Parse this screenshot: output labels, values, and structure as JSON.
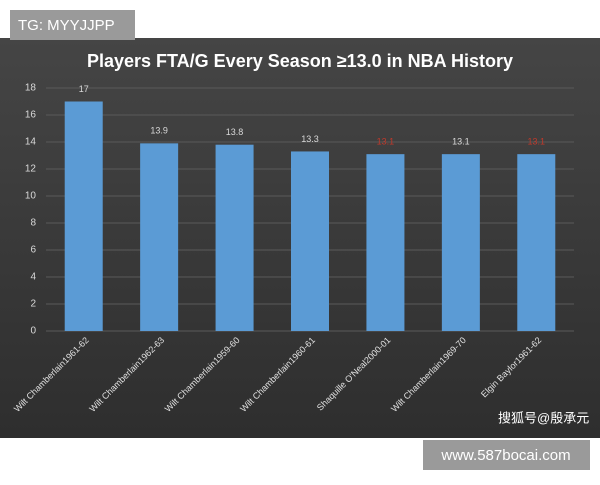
{
  "overlay_top": "TG: MYYJJPP",
  "overlay_bottom": "www.587bocai.com",
  "source": "搜狐号@殷承元",
  "chart_data": {
    "type": "bar",
    "title": "Players FTA/G Every Season ≥13.0 in NBA History",
    "categories": [
      "Wilt Chamberlain1961-62",
      "Wilt Chamberlain1962-63",
      "Wilt Chamberlain1959-60",
      "Wilt Chamberlain1960-61",
      "Shaquille O'Neal2000-01",
      "Wilt Chamberlain1969-70",
      "Elgin Baylor1961-62"
    ],
    "values": [
      17,
      13.9,
      13.8,
      13.3,
      13.1,
      13.1,
      13.1
    ],
    "label_colors": [
      "#d9d9d9",
      "#d9d9d9",
      "#d9d9d9",
      "#d9d9d9",
      "#c0392b",
      "#d9d9d9",
      "#c0392b"
    ],
    "color": "#5b9bd5",
    "ylim": [
      0,
      18
    ],
    "yticks": [
      0,
      2,
      4,
      6,
      8,
      10,
      12,
      14,
      16,
      18
    ],
    "grid": true
  }
}
